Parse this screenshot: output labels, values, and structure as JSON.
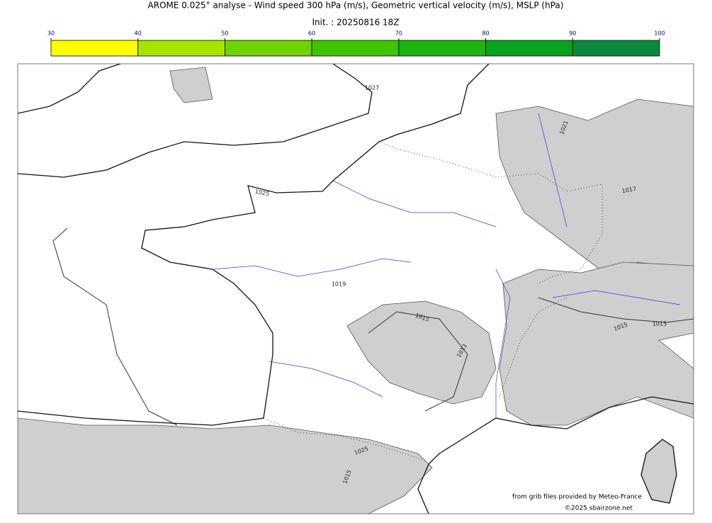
{
  "header": {
    "title": "AROME 0.025° analyse - Wind speed 300 hPa (m/s), Geometric vertical velocity (m/s), MSLP (hPa)",
    "subtitle": "Init. : 20250816 18Z"
  },
  "colorbar": {
    "ticks": [
      30,
      40,
      50,
      60,
      70,
      80,
      90,
      100
    ],
    "colors": [
      "#ffff00",
      "#a6e400",
      "#6ed300",
      "#3fc400",
      "#1db40f",
      "#09a21e",
      "#0a8a3c",
      "#0a7a50"
    ]
  },
  "map": {
    "contour_labels": [
      "1027",
      "1025",
      "1021",
      "1017",
      "1019",
      "1015",
      "1013",
      "1015",
      "1015",
      "1025",
      "1015"
    ]
  },
  "credits": {
    "source": "from grib files provided by Meteo-France",
    "copyright": "©2025 sbairzone.net"
  }
}
